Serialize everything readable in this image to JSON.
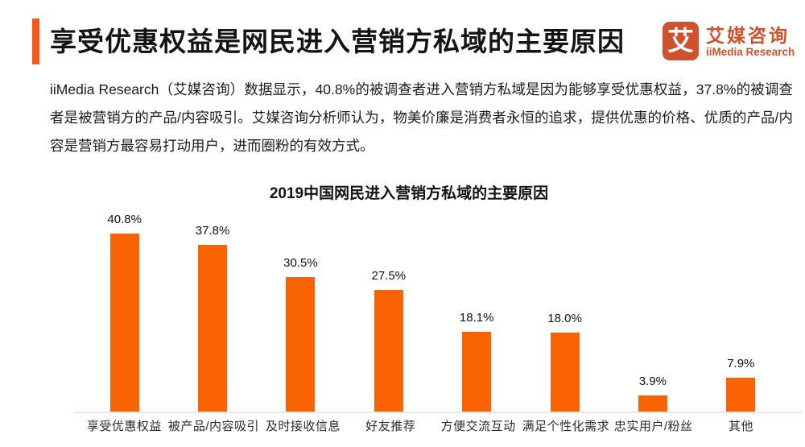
{
  "header": {
    "title": "享受优惠权益是网民进入营销方私域的主要原因",
    "logo": {
      "glyph": "艾",
      "brand_cn": "艾媒咨询",
      "brand_en": "iiMedia Research"
    }
  },
  "intro": {
    "text": "iiMedia Research（艾媒咨询）数据显示，40.8%的被调查者进入营销方私域是因为能够享受优惠权益，37.8%的被调查者是被营销方的产品/内容吸引。艾媒咨询分析师认为，物美价廉是消费者永恒的追求，提供优惠的价格、优质的产品/内容是营销方最容易打动用户，进而圈粉的有效方式。"
  },
  "chart_data": {
    "type": "bar",
    "title": "2019中国网民进入营销方私域的主要原因",
    "categories": [
      "享受优惠权益",
      "被产品/内容吸引",
      "及时接收信息",
      "好友推荐",
      "方便交流互动",
      "满足个性化需求",
      "忠实用户/粉丝",
      "其他"
    ],
    "values": [
      40.8,
      37.8,
      30.5,
      27.5,
      18.1,
      18.0,
      3.9,
      7.9
    ],
    "value_labels": [
      "40.8%",
      "37.8%",
      "30.5%",
      "27.5%",
      "18.1%",
      "18.0%",
      "3.9%",
      "7.9%"
    ],
    "xlabel": "",
    "ylabel": "",
    "ylim": [
      0,
      45
    ],
    "grid": false,
    "legend": false,
    "bar_color": "#F96302"
  },
  "colors": {
    "accent": "#F9581A",
    "bar": "#F96302",
    "brand": "#D0512B",
    "axis": "#E9E9E9"
  }
}
